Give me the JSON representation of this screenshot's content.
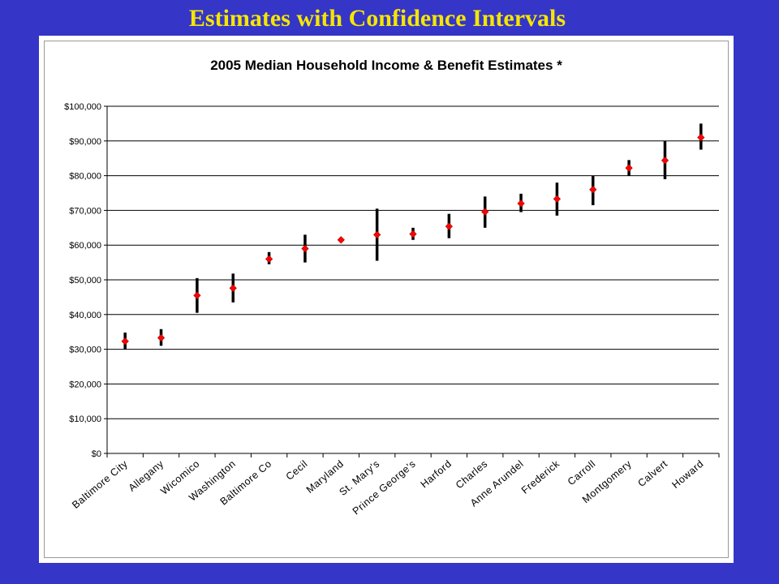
{
  "slide": {
    "title": "Estimates with Confidence Intervals"
  },
  "colors": {
    "background": "#3535c8",
    "title": "#f5e600",
    "estimate_marker": "#ff0000",
    "interval_bar": "#000000"
  },
  "chart_data": {
    "type": "scatter",
    "title": "2005 Median Household Income & Benefit Estimates *",
    "xlabel": "",
    "ylabel": "",
    "ylim": [
      0,
      100000
    ],
    "yticks": [
      0,
      10000,
      20000,
      30000,
      40000,
      50000,
      60000,
      70000,
      80000,
      90000,
      100000
    ],
    "ytick_labels": [
      "$0",
      "$10,000",
      "$20,000",
      "$30,000",
      "$40,000",
      "$50,000",
      "$60,000",
      "$70,000",
      "$80,000",
      "$90,000",
      "$100,000"
    ],
    "grid": true,
    "legend": "none",
    "categories": [
      "Baltimore City",
      "Allegany",
      "Wicomico",
      "Washington",
      "Baltimore Co",
      "Cecil",
      "Maryland",
      "St. Mary's",
      "Prince George's",
      "Harford",
      "Charles",
      "Anne Arundel",
      "Frederick",
      "Carroll",
      "Montgomery",
      "Calvert",
      "Howard"
    ],
    "series": [
      {
        "estimate": [
          32300,
          33300,
          45500,
          47600,
          56000,
          59000,
          61500,
          63000,
          63200,
          65400,
          69600,
          72000,
          73300,
          76000,
          82200,
          84400,
          91000
        ],
        "lower": [
          30000,
          31000,
          40500,
          43500,
          54500,
          55000,
          61000,
          55500,
          61500,
          62000,
          65000,
          69500,
          68500,
          71500,
          80000,
          79000,
          87500
        ],
        "upper": [
          34800,
          35800,
          50500,
          51800,
          58000,
          63000,
          62000,
          70500,
          65000,
          69000,
          74000,
          74800,
          78000,
          80000,
          84500,
          90000,
          95000
        ]
      }
    ]
  }
}
